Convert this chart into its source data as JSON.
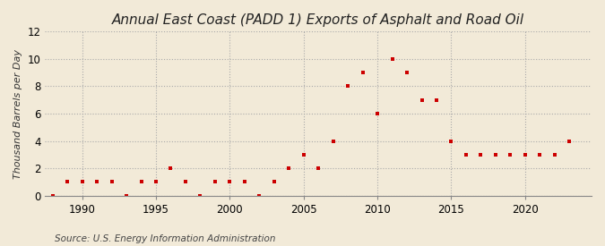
{
  "title": "Annual East Coast (PADD 1) Exports of Asphalt and Road Oil",
  "ylabel": "Thousand Barrels per Day",
  "source": "Source: U.S. Energy Information Administration",
  "background_color": "#f2ead8",
  "plot_background_color": "#f2ead8",
  "marker_color": "#cc0000",
  "marker": "s",
  "markersize": 3.5,
  "years": [
    1988,
    1989,
    1990,
    1991,
    1992,
    1993,
    1994,
    1995,
    1996,
    1997,
    1998,
    1999,
    2000,
    2001,
    2002,
    2003,
    2004,
    2005,
    2006,
    2007,
    2008,
    2009,
    2010,
    2011,
    2012,
    2013,
    2014,
    2015,
    2016,
    2017,
    2018,
    2019,
    2020,
    2021,
    2022,
    2023
  ],
  "values": [
    0,
    1,
    1,
    1,
    1,
    0,
    1,
    1,
    2,
    1,
    0,
    1,
    1,
    1,
    0,
    1,
    2,
    3,
    2,
    4,
    8,
    9,
    6,
    10,
    9,
    7,
    7,
    4,
    3,
    3,
    3,
    3,
    3,
    3,
    3,
    4
  ],
  "xlim": [
    1987.5,
    2024.5
  ],
  "ylim": [
    0,
    12
  ],
  "yticks": [
    0,
    2,
    4,
    6,
    8,
    10,
    12
  ],
  "xticks": [
    1990,
    1995,
    2000,
    2005,
    2010,
    2015,
    2020
  ],
  "grid_color": "#aaaaaa",
  "grid_linestyle": ":",
  "grid_linewidth": 0.8,
  "title_fontsize": 11,
  "label_fontsize": 8,
  "tick_fontsize": 8.5,
  "source_fontsize": 7.5
}
